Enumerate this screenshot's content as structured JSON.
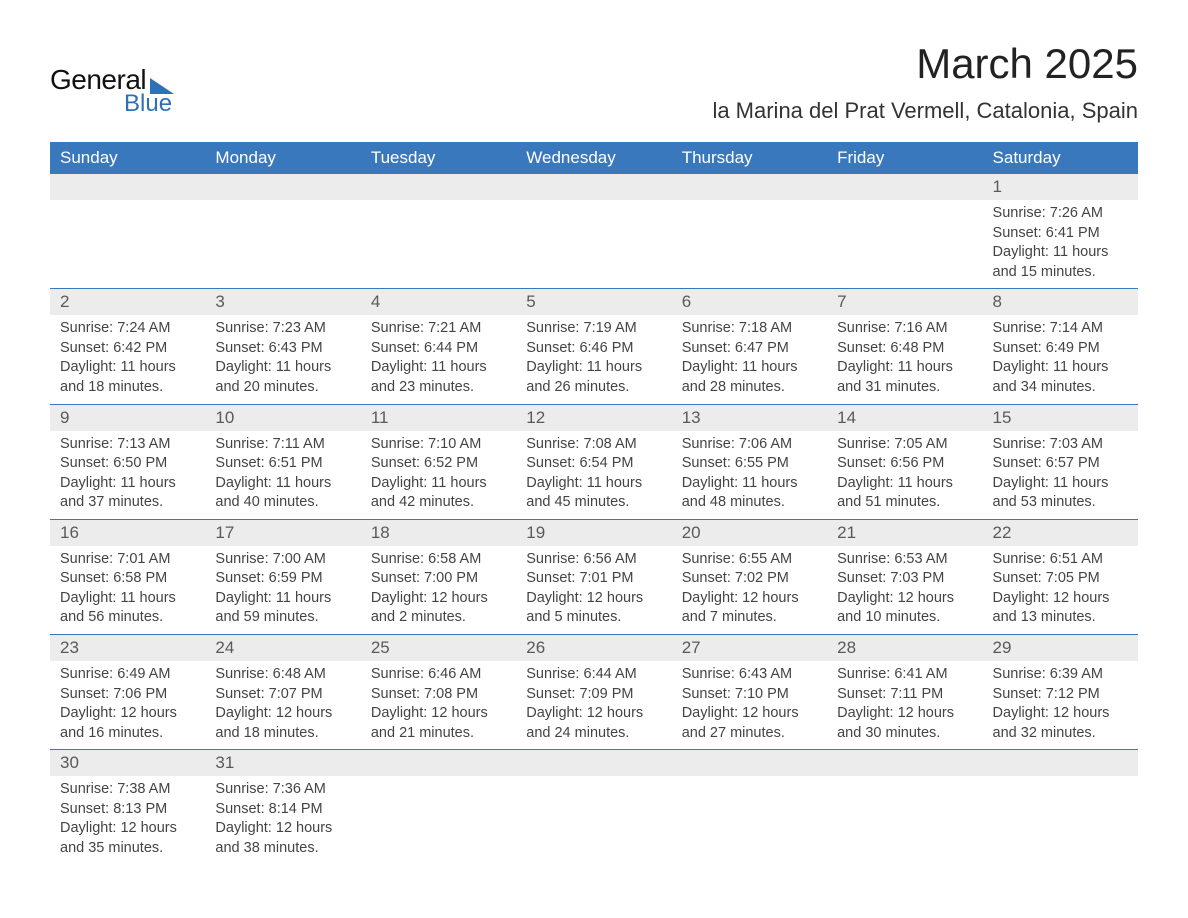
{
  "logo": {
    "general": "General",
    "blue": "Blue"
  },
  "title": "March 2025",
  "subtitle": "la Marina del Prat Vermell, Catalonia, Spain",
  "colors": {
    "header_bg": "#3a78bd",
    "header_text": "#ffffff",
    "row_divider": "#3a78bd",
    "daynum_bg": "#ececec",
    "text": "#444444",
    "logo_blue": "#2f70b7"
  },
  "typography": {
    "title_fontsize": 42,
    "subtitle_fontsize": 22,
    "header_fontsize": 17,
    "daynum_fontsize": 17,
    "body_fontsize": 14.5
  },
  "weekdays": [
    "Sunday",
    "Monday",
    "Tuesday",
    "Wednesday",
    "Thursday",
    "Friday",
    "Saturday"
  ],
  "labels": {
    "sunrise": "Sunrise:",
    "sunset": "Sunset:",
    "daylight": "Daylight:"
  },
  "weeks": [
    [
      null,
      null,
      null,
      null,
      null,
      null,
      {
        "day": "1",
        "sunrise": "7:26 AM",
        "sunset": "6:41 PM",
        "daylight": "11 hours and 15 minutes."
      }
    ],
    [
      {
        "day": "2",
        "sunrise": "7:24 AM",
        "sunset": "6:42 PM",
        "daylight": "11 hours and 18 minutes."
      },
      {
        "day": "3",
        "sunrise": "7:23 AM",
        "sunset": "6:43 PM",
        "daylight": "11 hours and 20 minutes."
      },
      {
        "day": "4",
        "sunrise": "7:21 AM",
        "sunset": "6:44 PM",
        "daylight": "11 hours and 23 minutes."
      },
      {
        "day": "5",
        "sunrise": "7:19 AM",
        "sunset": "6:46 PM",
        "daylight": "11 hours and 26 minutes."
      },
      {
        "day": "6",
        "sunrise": "7:18 AM",
        "sunset": "6:47 PM",
        "daylight": "11 hours and 28 minutes."
      },
      {
        "day": "7",
        "sunrise": "7:16 AM",
        "sunset": "6:48 PM",
        "daylight": "11 hours and 31 minutes."
      },
      {
        "day": "8",
        "sunrise": "7:14 AM",
        "sunset": "6:49 PM",
        "daylight": "11 hours and 34 minutes."
      }
    ],
    [
      {
        "day": "9",
        "sunrise": "7:13 AM",
        "sunset": "6:50 PM",
        "daylight": "11 hours and 37 minutes."
      },
      {
        "day": "10",
        "sunrise": "7:11 AM",
        "sunset": "6:51 PM",
        "daylight": "11 hours and 40 minutes."
      },
      {
        "day": "11",
        "sunrise": "7:10 AM",
        "sunset": "6:52 PM",
        "daylight": "11 hours and 42 minutes."
      },
      {
        "day": "12",
        "sunrise": "7:08 AM",
        "sunset": "6:54 PM",
        "daylight": "11 hours and 45 minutes."
      },
      {
        "day": "13",
        "sunrise": "7:06 AM",
        "sunset": "6:55 PM",
        "daylight": "11 hours and 48 minutes."
      },
      {
        "day": "14",
        "sunrise": "7:05 AM",
        "sunset": "6:56 PM",
        "daylight": "11 hours and 51 minutes."
      },
      {
        "day": "15",
        "sunrise": "7:03 AM",
        "sunset": "6:57 PM",
        "daylight": "11 hours and 53 minutes."
      }
    ],
    [
      {
        "day": "16",
        "sunrise": "7:01 AM",
        "sunset": "6:58 PM",
        "daylight": "11 hours and 56 minutes."
      },
      {
        "day": "17",
        "sunrise": "7:00 AM",
        "sunset": "6:59 PM",
        "daylight": "11 hours and 59 minutes."
      },
      {
        "day": "18",
        "sunrise": "6:58 AM",
        "sunset": "7:00 PM",
        "daylight": "12 hours and 2 minutes."
      },
      {
        "day": "19",
        "sunrise": "6:56 AM",
        "sunset": "7:01 PM",
        "daylight": "12 hours and 5 minutes."
      },
      {
        "day": "20",
        "sunrise": "6:55 AM",
        "sunset": "7:02 PM",
        "daylight": "12 hours and 7 minutes."
      },
      {
        "day": "21",
        "sunrise": "6:53 AM",
        "sunset": "7:03 PM",
        "daylight": "12 hours and 10 minutes."
      },
      {
        "day": "22",
        "sunrise": "6:51 AM",
        "sunset": "7:05 PM",
        "daylight": "12 hours and 13 minutes."
      }
    ],
    [
      {
        "day": "23",
        "sunrise": "6:49 AM",
        "sunset": "7:06 PM",
        "daylight": "12 hours and 16 minutes."
      },
      {
        "day": "24",
        "sunrise": "6:48 AM",
        "sunset": "7:07 PM",
        "daylight": "12 hours and 18 minutes."
      },
      {
        "day": "25",
        "sunrise": "6:46 AM",
        "sunset": "7:08 PM",
        "daylight": "12 hours and 21 minutes."
      },
      {
        "day": "26",
        "sunrise": "6:44 AM",
        "sunset": "7:09 PM",
        "daylight": "12 hours and 24 minutes."
      },
      {
        "day": "27",
        "sunrise": "6:43 AM",
        "sunset": "7:10 PM",
        "daylight": "12 hours and 27 minutes."
      },
      {
        "day": "28",
        "sunrise": "6:41 AM",
        "sunset": "7:11 PM",
        "daylight": "12 hours and 30 minutes."
      },
      {
        "day": "29",
        "sunrise": "6:39 AM",
        "sunset": "7:12 PM",
        "daylight": "12 hours and 32 minutes."
      }
    ],
    [
      {
        "day": "30",
        "sunrise": "7:38 AM",
        "sunset": "8:13 PM",
        "daylight": "12 hours and 35 minutes."
      },
      {
        "day": "31",
        "sunrise": "7:36 AM",
        "sunset": "8:14 PM",
        "daylight": "12 hours and 38 minutes."
      },
      null,
      null,
      null,
      null,
      null
    ]
  ]
}
